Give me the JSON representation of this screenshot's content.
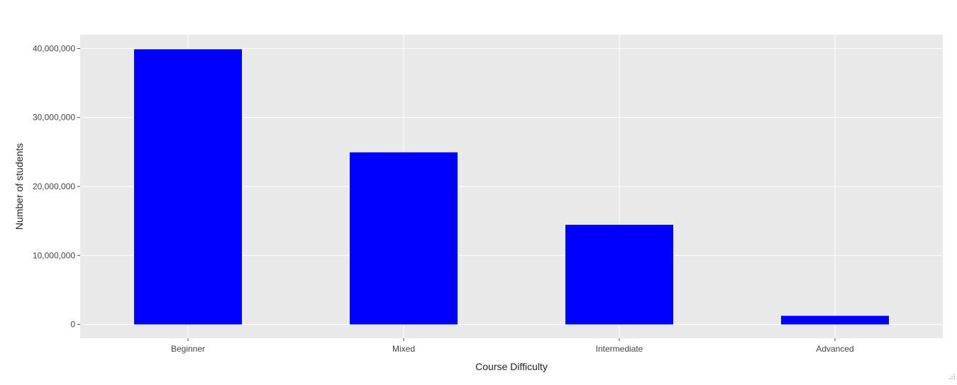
{
  "chart_data": {
    "type": "bar",
    "categories": [
      "Beginner",
      "Mixed",
      "Intermediate",
      "Advanced"
    ],
    "values": [
      39900000,
      24950000,
      14450000,
      1250000
    ],
    "xlabel": "Course Difficulty",
    "ylabel": "Number of students",
    "ylim": [
      -2000000,
      42000000
    ],
    "yticks": [
      0,
      10000000,
      20000000,
      30000000,
      40000000
    ],
    "ytick_labels": [
      "0",
      "10,000,000",
      "20,000,000",
      "30,000,000",
      "40,000,000"
    ],
    "grid": true,
    "colors": {
      "bar": "#0000ff",
      "plot_background": "#e9e9e9",
      "grid": "#ffffff",
      "page_background": "#ffffff"
    }
  }
}
